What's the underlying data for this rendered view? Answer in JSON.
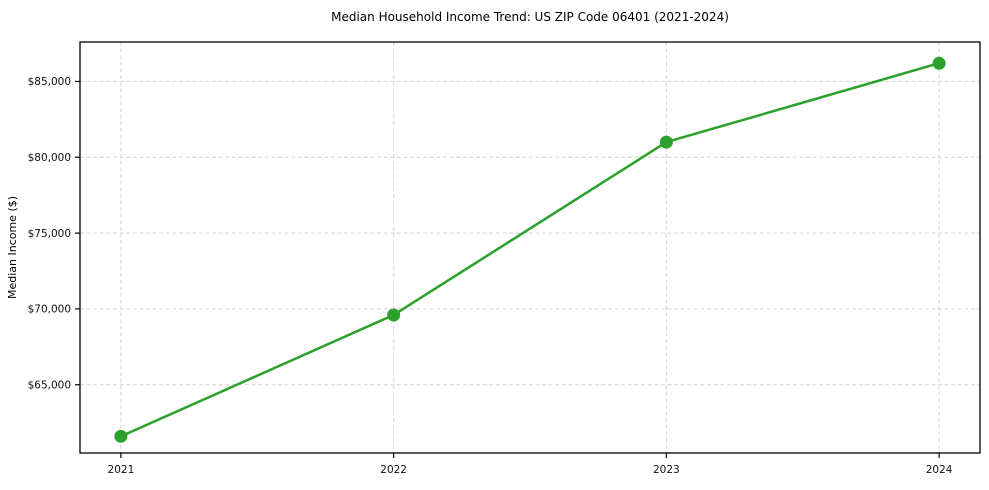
{
  "chart_data": {
    "type": "line",
    "title": "Median Household Income Trend: US ZIP Code 06401 (2021-2024)",
    "xlabel": "",
    "ylabel": "Median Income ($)",
    "x": [
      2021,
      2022,
      2023,
      2024
    ],
    "x_tick_labels": [
      "2021",
      "2022",
      "2023",
      "2024"
    ],
    "series": [
      {
        "name": "Median Household Income",
        "values": [
          61600,
          69600,
          81000,
          86200
        ]
      }
    ],
    "y_ticks": [
      65000,
      70000,
      75000,
      80000,
      85000
    ],
    "y_tick_labels": [
      "$65,000",
      "$70,000",
      "$75,000",
      "$80,000",
      "$85,000"
    ],
    "ylim": [
      60500,
      87600
    ],
    "xlim": [
      2020.85,
      2024.15
    ],
    "grid": true,
    "grid_style": "dashed",
    "legend": "none",
    "marker": "circle",
    "colors": {
      "line": "#2ca02c",
      "marker": "#2ca02c",
      "grid": "#d4d4d4",
      "text": "#000000",
      "background": "#ffffff"
    }
  }
}
